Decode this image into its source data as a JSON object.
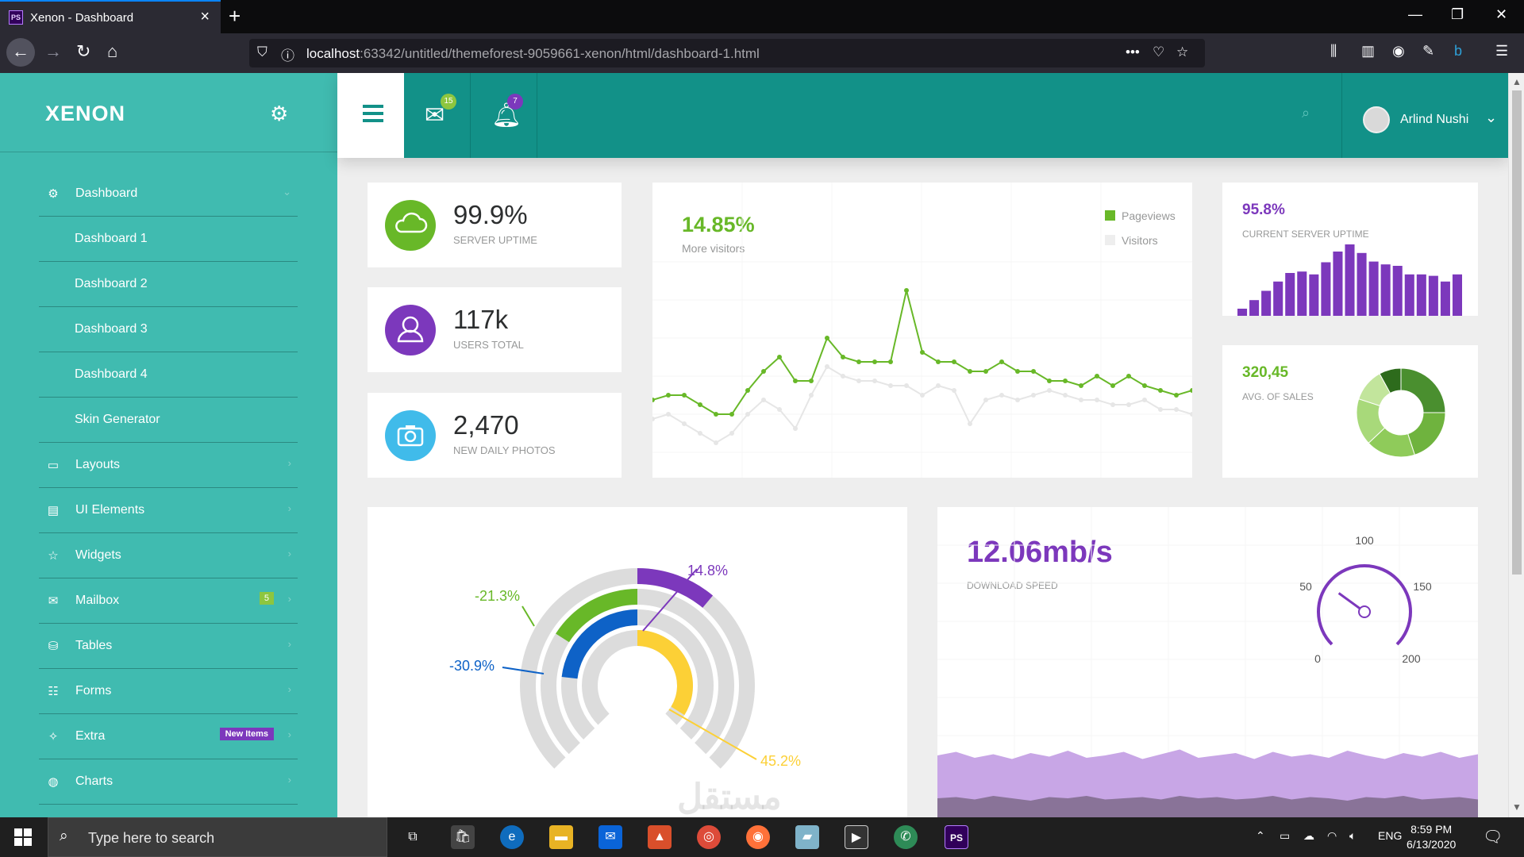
{
  "browser": {
    "tab_title": "Xenon - Dashboard",
    "tab_icon_text": "PS",
    "url_host": "localhost",
    "url_rest": ":63342/untitled/themeforest-9059661-xenon/html/dashboard-1.html"
  },
  "sidebar": {
    "logo": "XENON",
    "items": [
      {
        "label": "Dashboard",
        "icon": "gear-icon",
        "chevron": "⌄"
      },
      {
        "label": "Dashboard 1"
      },
      {
        "label": "Dashboard 2"
      },
      {
        "label": "Dashboard 3"
      },
      {
        "label": "Dashboard 4"
      },
      {
        "label": "Skin Generator"
      },
      {
        "label": "Layouts",
        "icon": "monitor-icon",
        "chevron": "›"
      },
      {
        "label": "UI Elements",
        "icon": "list-icon",
        "chevron": "›"
      },
      {
        "label": "Widgets",
        "icon": "star-icon",
        "chevron": "›"
      },
      {
        "label": "Mailbox",
        "icon": "envelope-icon",
        "badge": "5",
        "chevron": "›"
      },
      {
        "label": "Tables",
        "icon": "database-icon",
        "chevron": "›"
      },
      {
        "label": "Forms",
        "icon": "sliders-icon",
        "chevron": "›"
      },
      {
        "label": "Extra",
        "icon": "magic-wand-icon",
        "badge": "New Items",
        "chevron": "›"
      },
      {
        "label": "Charts",
        "icon": "globe-icon",
        "chevron": "›"
      }
    ]
  },
  "header": {
    "mail_badge": "15",
    "bell_badge": "7",
    "user_name": "Arlind Nushi"
  },
  "stats": [
    {
      "value": "99.9%",
      "label": "SERVER UPTIME",
      "icon": "cloud-icon",
      "color": "#68b828"
    },
    {
      "value": "117k",
      "label": "USERS TOTAL",
      "icon": "user-icon",
      "color": "#7c38bc"
    },
    {
      "value": "2,470",
      "label": "NEW DAILY PHOTOS",
      "icon": "camera-icon",
      "color": "#40bbea"
    }
  ],
  "visitors_chart": {
    "headline": "14.85%",
    "subtitle": "More visitors",
    "legend": [
      {
        "name": "Pageviews",
        "color": "#68b828"
      },
      {
        "name": "Visitors",
        "color": "#eeeeee"
      }
    ]
  },
  "uptime_chart": {
    "value": "95.8%",
    "label": "CURRENT SERVER UPTIME"
  },
  "sales_chart": {
    "value": "320,45",
    "label": "AVG. OF SALES"
  },
  "speed_panel": {
    "value": "12.06mb/s",
    "label": "DOWNLOAD SPEED",
    "gauge_ticks": [
      "0",
      "50",
      "100",
      "150",
      "200"
    ],
    "gauge_value": 60
  },
  "radial_labels": [
    "14.8%",
    "-21.3%",
    "-30.9%",
    "45.2%"
  ],
  "watermark": "مستقل mostaql.com",
  "taskbar": {
    "search_placeholder": "Type here to search",
    "lang": "ENG",
    "time": "8:59 PM",
    "date": "6/13/2020"
  },
  "chart_data": [
    {
      "type": "line",
      "series": [
        {
          "name": "Pageviews",
          "values": [
            11,
            12,
            12,
            10,
            8,
            8,
            13,
            17,
            20,
            15,
            15,
            24,
            20,
            19,
            19,
            19,
            34,
            21,
            19,
            19,
            17,
            17,
            19,
            17,
            17,
            15,
            15,
            14,
            16,
            14,
            16,
            14,
            13,
            12,
            13
          ]
        },
        {
          "name": "Visitors",
          "values": [
            7,
            8,
            6,
            4,
            2,
            4,
            8,
            11,
            9,
            5,
            12,
            18,
            16,
            15,
            15,
            14,
            14,
            12,
            14,
            13,
            6,
            11,
            12,
            11,
            12,
            13,
            12,
            11,
            11,
            10,
            10,
            11,
            9,
            9,
            8
          ]
        }
      ],
      "ylim": [
        0,
        40
      ]
    },
    {
      "type": "bar",
      "values": [
        10,
        22,
        35,
        48,
        60,
        62,
        58,
        75,
        90,
        100,
        88,
        76,
        72,
        70,
        58,
        58,
        56,
        48,
        58
      ],
      "ylim": [
        0,
        100
      ]
    },
    {
      "type": "pie",
      "values": [
        25,
        20,
        18,
        17,
        12,
        8
      ],
      "donut": true
    },
    {
      "type": "pie",
      "series": [
        {
          "name": "14.8%",
          "value": 14.8,
          "color": "#7c38bc"
        },
        {
          "name": "-21.3%",
          "value": 21.3,
          "color": "#68b828"
        },
        {
          "name": "-30.9%",
          "value": 30.9,
          "color": "#0e62c7"
        },
        {
          "name": "45.2%",
          "value": 45.2,
          "color": "#fcd036"
        }
      ]
    },
    {
      "type": "area",
      "series": [
        {
          "name": "upper",
          "values": [
            52,
            55,
            50,
            53,
            49,
            54,
            51,
            56,
            50,
            52,
            55,
            49,
            53,
            57,
            50,
            52,
            54,
            49,
            55,
            51,
            53,
            50,
            56,
            52,
            49,
            54,
            51,
            55,
            50,
            53
          ]
        },
        {
          "name": "lower",
          "values": [
            16,
            17,
            15,
            18,
            16,
            14,
            17,
            16,
            18,
            15,
            16,
            17,
            15,
            18,
            16,
            17,
            15,
            16,
            18,
            15,
            17,
            16,
            14,
            17,
            16,
            18,
            15,
            16,
            17,
            15
          ]
        }
      ],
      "ylim": [
        0,
        100
      ]
    }
  ]
}
